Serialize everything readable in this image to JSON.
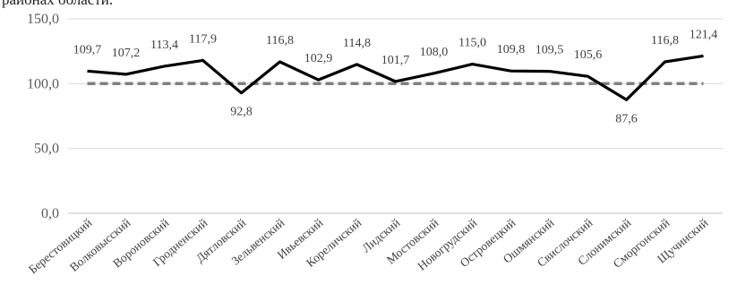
{
  "header": {
    "clipped_title": "районах области."
  },
  "chart_data": {
    "type": "line",
    "ylim": [
      0,
      150
    ],
    "yticks": [
      "0,0",
      "50,0",
      "100,0",
      "150,0"
    ],
    "grid": true,
    "categories": [
      "Берестовицкий",
      "Волковысский",
      "Вороновский",
      "Гродненский",
      "Дятловский",
      "Зельвенский",
      "Ивьевский",
      "Кореличский",
      "Лидский",
      "Мостовский",
      "Новогрудский",
      "Островецкий",
      "Ошмянский",
      "Свислочский",
      "Слонимский",
      "Сморгонский",
      "Щучинский"
    ],
    "series": [
      {
        "style": "solid",
        "color": "#000000",
        "values": [
          109.7,
          107.2,
          113.4,
          117.9,
          92.8,
          116.8,
          102.9,
          114.8,
          101.7,
          108.0,
          115.0,
          109.8,
          109.5,
          105.6,
          87.6,
          116.8,
          121.4
        ],
        "labels": [
          "109,7",
          "107,2",
          "113,4",
          "117,9",
          "92,8",
          "116,8",
          "102,9",
          "114,8",
          "101,7",
          "108,0",
          "115,0",
          "109,8",
          "109,5",
          "105,6",
          "87,6",
          "116,8",
          "121,4"
        ],
        "label_position": [
          "above",
          "above",
          "above",
          "above",
          "below",
          "above",
          "above",
          "above",
          "above",
          "above",
          "above",
          "above",
          "above",
          "above",
          "below",
          "above",
          "above"
        ]
      },
      {
        "style": "dashed",
        "color": "#808080",
        "values": [
          100,
          100,
          100,
          100,
          100,
          100,
          100,
          100,
          100,
          100,
          100,
          100,
          100,
          100,
          100,
          100,
          100
        ]
      }
    ]
  }
}
